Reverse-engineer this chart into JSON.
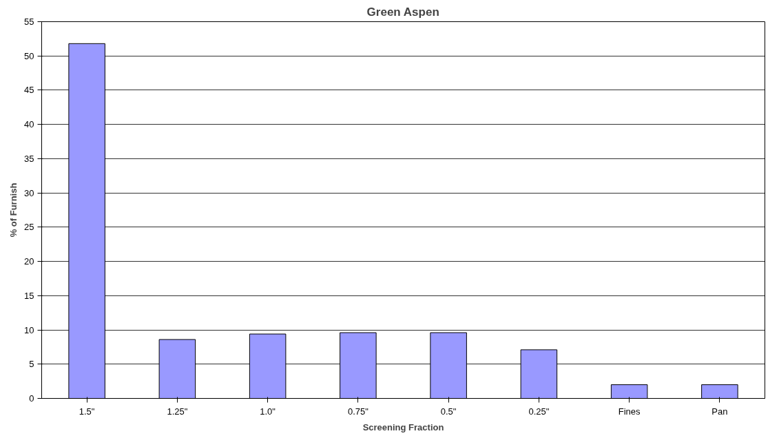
{
  "chart_data": {
    "type": "bar",
    "title": "Green Aspen",
    "xlabel": "Screening Fraction",
    "ylabel": "% of Furnish",
    "categories": [
      "1.5\"",
      "1.25\"",
      "1.0\"",
      "0.75\"",
      "0.5\"",
      "0.25\"",
      "Fines",
      "Pan"
    ],
    "values": [
      51.8,
      8.6,
      9.4,
      9.6,
      9.6,
      7.1,
      2.0,
      2.0
    ],
    "color": "#9999ff",
    "ylim": [
      0,
      55
    ],
    "yticks": [
      0,
      5,
      10,
      15,
      20,
      25,
      30,
      35,
      40,
      45,
      50,
      55
    ],
    "grid": "y"
  }
}
